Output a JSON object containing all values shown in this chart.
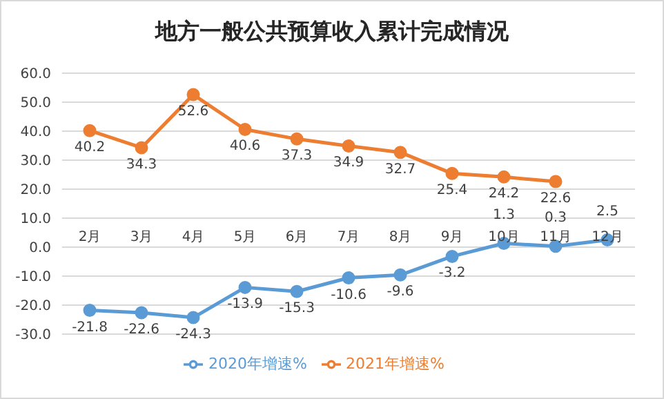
{
  "chart_data": {
    "type": "line",
    "title": "地方一般公共预算收入累计完成情况",
    "categories": [
      "2月",
      "3月",
      "4月",
      "5月",
      "6月",
      "7月",
      "8月",
      "9月",
      "10月",
      "11月",
      "12月"
    ],
    "series": [
      {
        "name": "2020年增速%",
        "color": "#5b9bd5",
        "values": [
          -21.8,
          -22.6,
          -24.3,
          -13.9,
          -15.3,
          -10.6,
          -9.6,
          -3.2,
          1.3,
          0.3,
          2.5
        ]
      },
      {
        "name": "2021年增速%",
        "color": "#ed7d31",
        "values": [
          40.2,
          34.3,
          52.6,
          40.6,
          37.3,
          34.9,
          32.7,
          25.4,
          24.2,
          22.6,
          null
        ]
      }
    ],
    "ylim": [
      -30,
      60
    ],
    "yticks": [
      {
        "value": -30,
        "label": "-30.0"
      },
      {
        "value": -20,
        "label": "-20.0"
      },
      {
        "value": -10,
        "label": "-10.0"
      },
      {
        "value": 0,
        "label": "0.0"
      },
      {
        "value": 10,
        "label": "10.0"
      },
      {
        "value": 20,
        "label": "20.0"
      },
      {
        "value": 30,
        "label": "30.0"
      },
      {
        "value": 40,
        "label": "40.0"
      },
      {
        "value": 50,
        "label": "50.0"
      },
      {
        "value": 60,
        "label": "60.0"
      }
    ],
    "grid": "y",
    "legend": "bottom",
    "marker": "circle",
    "data_labels": true
  }
}
